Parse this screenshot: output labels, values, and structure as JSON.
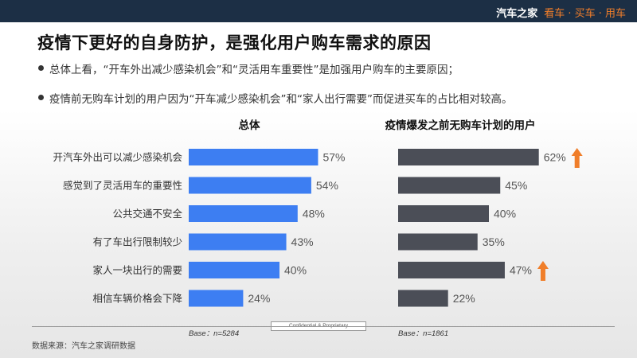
{
  "header": {
    "brand": "汽车之家",
    "tagline": "看车 · 买车 · 用车"
  },
  "title": "疫情下更好的自身防护，是强化用户购车需求的原因",
  "bullets": [
    "总体上看，“开车外出减少感染机会”和“灵活用车重要性”是加强用户购车的主要原因；",
    "疫情前无购车计划的用户因为“开车减少感染机会”和“家人出行需要”而促进买车的占比相对较高。"
  ],
  "colors": {
    "left_bar": "#3d7ef2",
    "right_bar": "#4b4e57",
    "arrow": "#f07e2a"
  },
  "chart_data": {
    "type": "bar",
    "orientation": "horizontal",
    "categories": [
      "开汽车外出可以减少感染机会",
      "感觉到了灵活用车的重要性",
      "公共交通不安全",
      "有了车出行限制较少",
      "家人一块出行的需要",
      "相信车辆价格会下降"
    ],
    "panels": [
      {
        "title": "总体",
        "values": [
          57,
          54,
          48,
          43,
          40,
          24
        ],
        "unit": "%",
        "base": "Base：n=5284",
        "color": "#3d7ef2"
      },
      {
        "title": "疫情爆发之前无购车计划的用户",
        "values": [
          62,
          45,
          40,
          35,
          47,
          22
        ],
        "unit": "%",
        "base": "Base：n=1861",
        "color": "#4b4e57",
        "highlight_up": [
          0,
          4
        ]
      }
    ]
  },
  "footer": {
    "confidential": "Confidential & Proprietary",
    "source": "数据来源：汽车之家调研数据"
  }
}
